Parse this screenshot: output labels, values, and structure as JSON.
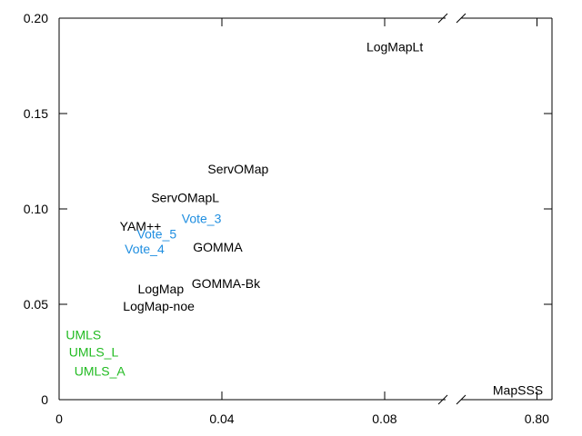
{
  "chart_data": {
    "type": "scatter",
    "title": "",
    "xlabel": "",
    "ylabel": "",
    "x_break": true,
    "x_segments": [
      {
        "xlim": [
          0,
          0.095
        ],
        "ticks": [
          {
            "value": 0,
            "label": "0"
          },
          {
            "value": 0.04,
            "label": "0.04"
          },
          {
            "value": 0.08,
            "label": "0.08"
          }
        ]
      },
      {
        "xlim": [
          0.7,
          0.82
        ],
        "ticks": [
          {
            "value": 0.8,
            "label": "0.80"
          }
        ]
      }
    ],
    "ylim": [
      0,
      0.2
    ],
    "yticks": [
      {
        "value": 0,
        "label": "0"
      },
      {
        "value": 0.05,
        "label": "0.05"
      },
      {
        "value": 0.1,
        "label": "0.10"
      },
      {
        "value": 0.15,
        "label": "0.15"
      },
      {
        "value": 0.2,
        "label": "0.20"
      }
    ],
    "grid": false,
    "legend": "none",
    "colors": {
      "black": "#000000",
      "blue": "#1f8ee0",
      "green": "#22bb22"
    },
    "points": [
      {
        "label": "LogMapLt",
        "x": 0.0825,
        "y": 0.185,
        "color": "black"
      },
      {
        "label": "ServOMap",
        "x": 0.044,
        "y": 0.121,
        "color": "black"
      },
      {
        "label": "ServOMapL",
        "x": 0.031,
        "y": 0.106,
        "color": "black"
      },
      {
        "label": "YAM++",
        "x": 0.02,
        "y": 0.091,
        "color": "black"
      },
      {
        "label": "Vote_3",
        "x": 0.035,
        "y": 0.095,
        "color": "blue"
      },
      {
        "label": "Vote_5",
        "x": 0.024,
        "y": 0.087,
        "color": "blue"
      },
      {
        "label": "Vote_4",
        "x": 0.021,
        "y": 0.079,
        "color": "blue"
      },
      {
        "label": "GOMMA",
        "x": 0.039,
        "y": 0.08,
        "color": "black"
      },
      {
        "label": "GOMMA-Bk",
        "x": 0.041,
        "y": 0.061,
        "color": "black"
      },
      {
        "label": "LogMap",
        "x": 0.025,
        "y": 0.058,
        "color": "black"
      },
      {
        "label": "LogMap-noe",
        "x": 0.0245,
        "y": 0.049,
        "color": "black"
      },
      {
        "label": "UMLS",
        "x": 0.006,
        "y": 0.034,
        "color": "green"
      },
      {
        "label": "UMLS_L",
        "x": 0.0085,
        "y": 0.025,
        "color": "green"
      },
      {
        "label": "UMLS_A",
        "x": 0.01,
        "y": 0.015,
        "color": "green"
      },
      {
        "label": "MapSSS",
        "x": 0.775,
        "y": 0.005,
        "color": "black"
      }
    ]
  }
}
